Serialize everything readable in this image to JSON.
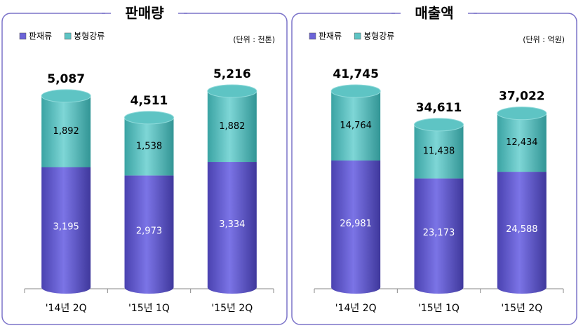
{
  "chart_data": [
    {
      "type": "bar",
      "stacked": true,
      "title": "판매량",
      "unit_note": "(단위 : 천톤)",
      "categories": [
        "'14년 2Q",
        "'15년 1Q",
        "'15년 2Q"
      ],
      "series": [
        {
          "name": "판재류",
          "color": "#6c64d8",
          "values": [
            3195,
            2973,
            3334
          ],
          "value_labels": [
            "3,195",
            "2,973",
            "3,334"
          ]
        },
        {
          "name": "봉형강류",
          "color": "#5ec4c4",
          "values": [
            1892,
            1538,
            1882
          ],
          "value_labels": [
            "1,892",
            "1,538",
            "1,882"
          ]
        }
      ],
      "totals": {
        "values": [
          5087,
          4511,
          5216
        ],
        "value_labels": [
          "5,087",
          "4,511",
          "5,216"
        ]
      }
    },
    {
      "type": "bar",
      "stacked": true,
      "title": "매출액",
      "unit_note": "(단위 : 억원)",
      "categories": [
        "'14년 2Q",
        "'15년 1Q",
        "'15년 2Q"
      ],
      "series": [
        {
          "name": "판재류",
          "color": "#6c64d8",
          "values": [
            26981,
            23173,
            24588
          ],
          "value_labels": [
            "26,981",
            "23,173",
            "24,588"
          ]
        },
        {
          "name": "봉형강류",
          "color": "#5ec4c4",
          "values": [
            14764,
            11438,
            12434
          ],
          "value_labels": [
            "14,764",
            "11,438",
            "12,434"
          ]
        }
      ],
      "totals": {
        "values": [
          41745,
          34611,
          37022
        ],
        "value_labels": [
          "41,745",
          "34,611",
          "37,022"
        ]
      }
    }
  ]
}
